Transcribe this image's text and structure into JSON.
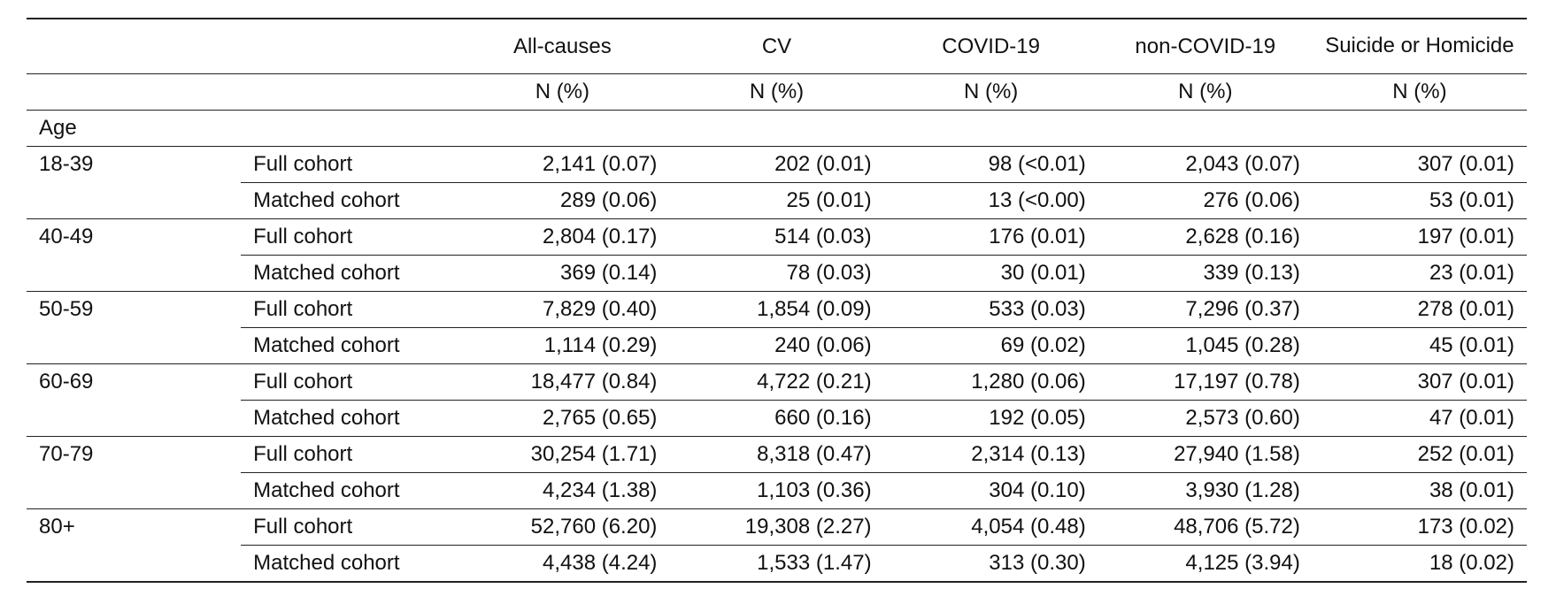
{
  "table": {
    "headers": [
      "",
      "",
      "All-causes",
      "CV",
      "COVID-19",
      "non-COVID-19",
      "Suicide or Homicide"
    ],
    "units": [
      "",
      "",
      "N (%)",
      "N (%)",
      "N (%)",
      "N (%)",
      "N (%)"
    ],
    "section_label": "Age",
    "groups": [
      {
        "age": "18-39",
        "rows": [
          {
            "cohort": "Full cohort",
            "values": [
              "2,141 (0.07)",
              "202 (0.01)",
              "98 (<0.01)",
              "2,043 (0.07)",
              "307 (0.01)"
            ]
          },
          {
            "cohort": "Matched cohort",
            "values": [
              "289 (0.06)",
              "25 (0.01)",
              "13 (<0.00)",
              "276 (0.06)",
              "53 (0.01)"
            ]
          }
        ]
      },
      {
        "age": "40-49",
        "rows": [
          {
            "cohort": "Full cohort",
            "values": [
              "2,804 (0.17)",
              "514 (0.03)",
              "176 (0.01)",
              "2,628 (0.16)",
              "197 (0.01)"
            ]
          },
          {
            "cohort": "Matched cohort",
            "values": [
              "369 (0.14)",
              "78 (0.03)",
              "30 (0.01)",
              "339 (0.13)",
              "23 (0.01)"
            ]
          }
        ]
      },
      {
        "age": "50-59",
        "rows": [
          {
            "cohort": "Full cohort",
            "values": [
              "7,829 (0.40)",
              "1,854 (0.09)",
              "533 (0.03)",
              "7,296 (0.37)",
              "278 (0.01)"
            ]
          },
          {
            "cohort": "Matched cohort",
            "values": [
              "1,114 (0.29)",
              "240 (0.06)",
              "69 (0.02)",
              "1,045 (0.28)",
              "45 (0.01)"
            ]
          }
        ]
      },
      {
        "age": "60-69",
        "rows": [
          {
            "cohort": "Full cohort",
            "values": [
              "18,477 (0.84)",
              "4,722 (0.21)",
              "1,280 (0.06)",
              "17,197 (0.78)",
              "307 (0.01)"
            ]
          },
          {
            "cohort": "Matched cohort",
            "values": [
              "2,765 (0.65)",
              "660 (0.16)",
              "192 (0.05)",
              "2,573 (0.60)",
              "47 (0.01)"
            ]
          }
        ]
      },
      {
        "age": "70-79",
        "rows": [
          {
            "cohort": "Full cohort",
            "values": [
              "30,254 (1.71)",
              "8,318 (0.47)",
              "2,314 (0.13)",
              "27,940 (1.58)",
              "252 (0.01)"
            ]
          },
          {
            "cohort": "Matched cohort",
            "values": [
              "4,234 (1.38)",
              "1,103 (0.36)",
              "304 (0.10)",
              "3,930 (1.28)",
              "38 (0.01)"
            ]
          }
        ]
      },
      {
        "age": "80+",
        "rows": [
          {
            "cohort": "Full cohort",
            "values": [
              "52,760 (6.20)",
              "19,308 (2.27)",
              "4,054 (0.48)",
              "48,706 (5.72)",
              "173 (0.02)"
            ]
          },
          {
            "cohort": "Matched cohort",
            "values": [
              "4,438 (4.24)",
              "1,533 (1.47)",
              "313 (0.30)",
              "4,125 (3.94)",
              "18 (0.02)"
            ]
          }
        ]
      }
    ]
  }
}
